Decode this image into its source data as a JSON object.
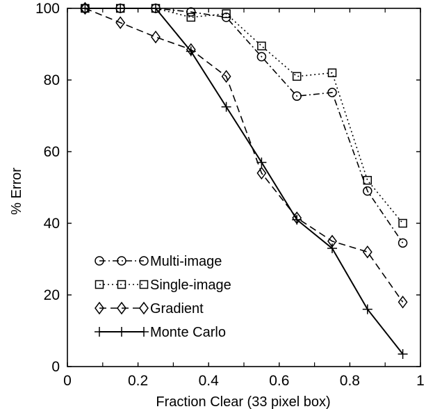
{
  "chart_data": {
    "type": "line",
    "title": "",
    "xlabel": "Fraction Clear (33 pixel box)",
    "ylabel": "% Error",
    "xlim": [
      0,
      1
    ],
    "ylim": [
      0,
      100
    ],
    "xticks": [
      0,
      0.2,
      0.4,
      0.6,
      0.8,
      1
    ],
    "xtick_labels": [
      "0",
      "0.2",
      "0.4",
      "0.6",
      "0.8",
      "1"
    ],
    "yticks": [
      0,
      20,
      40,
      60,
      80,
      100
    ],
    "ytick_labels": [
      "0",
      "20",
      "40",
      "60",
      "80",
      "100"
    ],
    "grid": false,
    "legend_position": "bottom-left",
    "x": [
      0.05,
      0.15,
      0.25,
      0.35,
      0.45,
      0.55,
      0.65,
      0.75,
      0.85,
      0.95
    ],
    "series": [
      {
        "name": "Multi-image",
        "marker": "circle",
        "linestyle": "dashdot",
        "values": [
          100,
          100,
          100,
          99,
          97.5,
          86.5,
          75.5,
          76.5,
          49,
          34.5
        ]
      },
      {
        "name": "Single-image",
        "marker": "square",
        "linestyle": "dotted",
        "values": [
          100,
          100,
          100,
          97.5,
          98.5,
          89.5,
          81,
          82,
          52,
          40
        ]
      },
      {
        "name": "Gradient",
        "marker": "diamond",
        "linestyle": "dashed",
        "values": [
          100,
          96,
          92,
          88.5,
          81,
          54,
          41.5,
          35,
          32,
          18
        ]
      },
      {
        "name": "Monte Carlo",
        "marker": "plus",
        "linestyle": "solid",
        "values": [
          100,
          100,
          100,
          88,
          72.5,
          57,
          41,
          33,
          16,
          3.5
        ]
      }
    ]
  }
}
